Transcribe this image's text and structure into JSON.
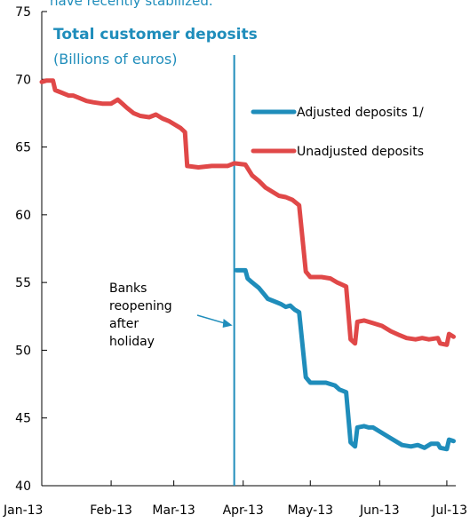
{
  "header_fragment": "have recently stabilized.",
  "chart_data": {
    "type": "line",
    "title": "Total customer deposits",
    "subtitle": "(Billions of euros)",
    "xlabel": "",
    "ylabel": "",
    "ylim": [
      40,
      75
    ],
    "yticks": [
      40,
      45,
      50,
      55,
      60,
      65,
      70,
      75
    ],
    "xticks": [
      "Jan-13",
      "Feb-13",
      "Mar-13",
      "Apr-13",
      "May-13",
      "Jun-13",
      "Jul-13"
    ],
    "grid": false,
    "legend_position": "top-right",
    "colors": {
      "adjusted": "#1F8DBB",
      "unadjusted": "#E04848",
      "title": "#1F8DBB",
      "marker": "#1F8DBB"
    },
    "series": [
      {
        "name": "Adjusted deposits 1/",
        "color": "#1F8DBB",
        "points": [
          [
            "2013-03-29",
            55.9
          ],
          [
            "2013-04-02",
            55.9
          ],
          [
            "2013-04-03",
            55.3
          ],
          [
            "2013-04-05",
            55.0
          ],
          [
            "2013-04-08",
            54.6
          ],
          [
            "2013-04-10",
            54.2
          ],
          [
            "2013-04-12",
            53.8
          ],
          [
            "2013-04-15",
            53.6
          ],
          [
            "2013-04-18",
            53.4
          ],
          [
            "2013-04-20",
            53.2
          ],
          [
            "2013-04-22",
            53.3
          ],
          [
            "2013-04-24",
            53.0
          ],
          [
            "2013-04-26",
            52.8
          ],
          [
            "2013-04-29",
            48.0
          ],
          [
            "2013-05-01",
            47.6
          ],
          [
            "2013-05-04",
            47.6
          ],
          [
            "2013-05-08",
            47.6
          ],
          [
            "2013-05-12",
            47.4
          ],
          [
            "2013-05-14",
            47.1
          ],
          [
            "2013-05-17",
            46.9
          ],
          [
            "2013-05-19",
            43.2
          ],
          [
            "2013-05-21",
            42.9
          ],
          [
            "2013-05-22",
            44.3
          ],
          [
            "2013-05-25",
            44.4
          ],
          [
            "2013-05-27",
            44.3
          ],
          [
            "2013-05-29",
            44.3
          ],
          [
            "2013-06-01",
            44.0
          ],
          [
            "2013-06-05",
            43.6
          ],
          [
            "2013-06-08",
            43.3
          ],
          [
            "2013-06-11",
            43.0
          ],
          [
            "2013-06-15",
            42.9
          ],
          [
            "2013-06-18",
            43.0
          ],
          [
            "2013-06-21",
            42.8
          ],
          [
            "2013-06-24",
            43.1
          ],
          [
            "2013-06-27",
            43.1
          ],
          [
            "2013-06-28",
            42.8
          ],
          [
            "2013-07-01",
            42.7
          ],
          [
            "2013-07-02",
            43.4
          ],
          [
            "2013-07-04",
            43.3
          ]
        ]
      },
      {
        "name": "Unadjusted deposits",
        "color": "#E04848",
        "points": [
          [
            "2013-01-01",
            69.8
          ],
          [
            "2013-01-03",
            69.9
          ],
          [
            "2013-01-06",
            69.9
          ],
          [
            "2013-01-07",
            69.2
          ],
          [
            "2013-01-10",
            69.0
          ],
          [
            "2013-01-13",
            68.8
          ],
          [
            "2013-01-15",
            68.8
          ],
          [
            "2013-01-18",
            68.6
          ],
          [
            "2013-01-21",
            68.4
          ],
          [
            "2013-01-24",
            68.3
          ],
          [
            "2013-01-28",
            68.2
          ],
          [
            "2013-02-01",
            68.2
          ],
          [
            "2013-02-04",
            68.5
          ],
          [
            "2013-02-06",
            68.2
          ],
          [
            "2013-02-08",
            67.9
          ],
          [
            "2013-02-11",
            67.5
          ],
          [
            "2013-02-14",
            67.3
          ],
          [
            "2013-02-18",
            67.2
          ],
          [
            "2013-02-21",
            67.4
          ],
          [
            "2013-02-24",
            67.1
          ],
          [
            "2013-02-27",
            66.9
          ],
          [
            "2013-03-04",
            66.4
          ],
          [
            "2013-03-06",
            66.1
          ],
          [
            "2013-03-07",
            63.6
          ],
          [
            "2013-03-12",
            63.5
          ],
          [
            "2013-03-18",
            63.6
          ],
          [
            "2013-03-22",
            63.6
          ],
          [
            "2013-03-25",
            63.6
          ],
          [
            "2013-03-28",
            63.8
          ],
          [
            "2013-04-02",
            63.7
          ],
          [
            "2013-04-05",
            62.9
          ],
          [
            "2013-04-08",
            62.5
          ],
          [
            "2013-04-11",
            62.0
          ],
          [
            "2013-04-14",
            61.7
          ],
          [
            "2013-04-17",
            61.4
          ],
          [
            "2013-04-20",
            61.3
          ],
          [
            "2013-04-23",
            61.1
          ],
          [
            "2013-04-26",
            60.7
          ],
          [
            "2013-04-29",
            55.8
          ],
          [
            "2013-05-01",
            55.4
          ],
          [
            "2013-05-06",
            55.4
          ],
          [
            "2013-05-10",
            55.3
          ],
          [
            "2013-05-13",
            55.0
          ],
          [
            "2013-05-17",
            54.7
          ],
          [
            "2013-05-19",
            50.8
          ],
          [
            "2013-05-21",
            50.5
          ],
          [
            "2013-05-22",
            52.1
          ],
          [
            "2013-05-25",
            52.2
          ],
          [
            "2013-05-29",
            52.0
          ],
          [
            "2013-06-02",
            51.8
          ],
          [
            "2013-06-06",
            51.4
          ],
          [
            "2013-06-10",
            51.1
          ],
          [
            "2013-06-13",
            50.9
          ],
          [
            "2013-06-17",
            50.8
          ],
          [
            "2013-06-20",
            50.9
          ],
          [
            "2013-06-23",
            50.8
          ],
          [
            "2013-06-27",
            50.9
          ],
          [
            "2013-06-28",
            50.5
          ],
          [
            "2013-07-01",
            50.4
          ],
          [
            "2013-07-02",
            51.2
          ],
          [
            "2013-07-04",
            51.0
          ]
        ]
      }
    ],
    "marker_line_date": "2013-03-28",
    "annotation": {
      "lines": [
        "Banks",
        "reopening",
        "after",
        "holiday"
      ]
    }
  }
}
